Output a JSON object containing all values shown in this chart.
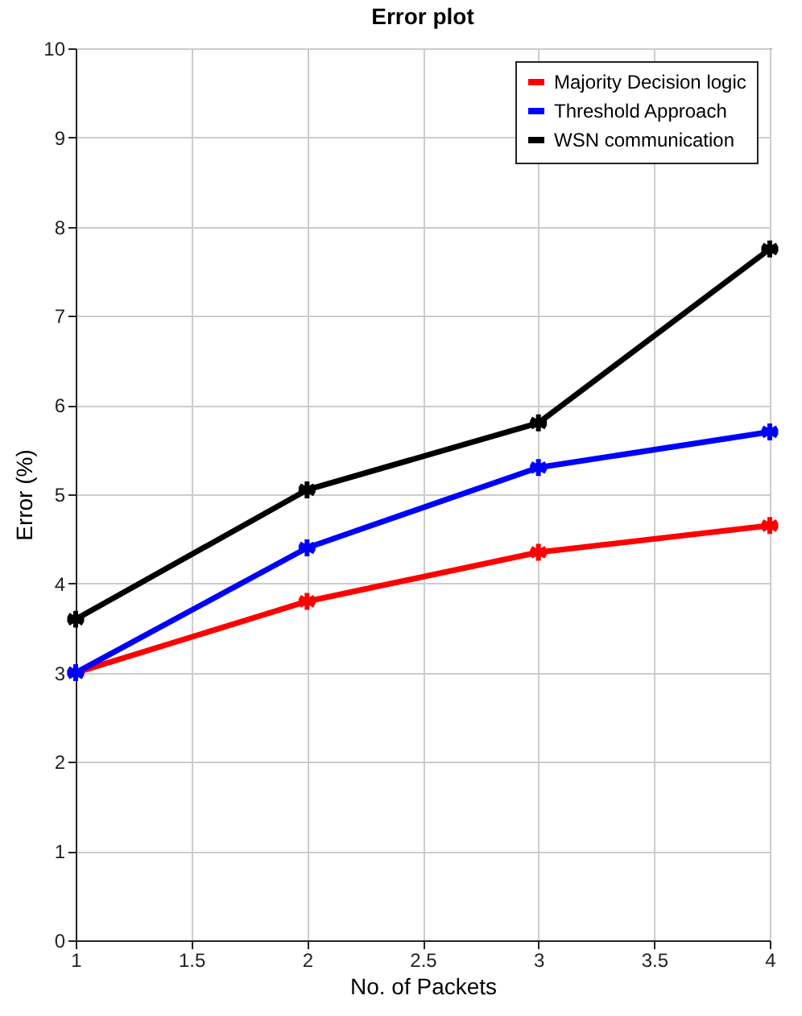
{
  "chart_data": {
    "type": "line",
    "title": "Error plot",
    "xlabel": "No. of Packets",
    "ylabel": "Error (%)",
    "x": [
      1,
      2,
      3,
      4
    ],
    "series": [
      {
        "name": "Majority Decision logic",
        "color": "#ff0000",
        "values": [
          3.0,
          3.8,
          4.35,
          4.65
        ]
      },
      {
        "name": "Threshold Approach",
        "color": "#0000ff",
        "values": [
          3.0,
          4.4,
          5.3,
          5.7
        ]
      },
      {
        "name": "WSN communication",
        "color": "#000000",
        "values": [
          3.6,
          5.05,
          5.8,
          7.75
        ]
      }
    ],
    "xlim": [
      1,
      4
    ],
    "xticks": [
      1,
      1.5,
      2,
      2.5,
      3,
      3.5,
      4
    ],
    "ylim": [
      0,
      10
    ],
    "yticks": [
      0,
      1,
      2,
      3,
      4,
      5,
      6,
      7,
      8,
      9,
      10
    ],
    "grid": true,
    "legend": "top right",
    "marker": "cross",
    "line_style": "solid"
  }
}
